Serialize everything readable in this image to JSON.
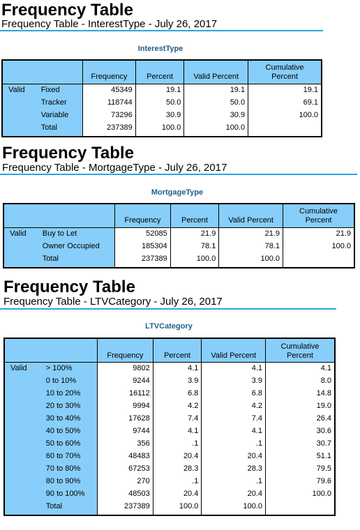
{
  "sections": [
    {
      "heading": "Frequency Table",
      "subtitle": "Frequency Table - InterestType - July 26, 2017",
      "table_title": "InterestType",
      "headers": {
        "frequency": "Frequency",
        "percent": "Percent",
        "valid_percent": "Valid Percent",
        "cumulative_percent": "Cumulative Percent"
      },
      "group_label": "Valid",
      "rows": [
        {
          "label": "Fixed",
          "frequency": "45349",
          "percent": "19.1",
          "valid_percent": "19.1",
          "cumulative_percent": "19.1"
        },
        {
          "label": "Tracker",
          "frequency": "118744",
          "percent": "50.0",
          "valid_percent": "50.0",
          "cumulative_percent": "69.1"
        },
        {
          "label": "Variable",
          "frequency": "73296",
          "percent": "30.9",
          "valid_percent": "30.9",
          "cumulative_percent": "100.0"
        },
        {
          "label": "Total",
          "frequency": "237389",
          "percent": "100.0",
          "valid_percent": "100.0",
          "cumulative_percent": ""
        }
      ]
    },
    {
      "heading": "Frequency Table",
      "subtitle": "Frequency Table - MortgageType - July 26, 2017",
      "table_title": "MortgageType",
      "headers": {
        "frequency": "Frequency",
        "percent": "Percent",
        "valid_percent": "Valid Percent",
        "cumulative_percent": "Cumulative Percent"
      },
      "group_label": "Valid",
      "rows": [
        {
          "label": "Buy to Let",
          "frequency": "52085",
          "percent": "21.9",
          "valid_percent": "21.9",
          "cumulative_percent": "21.9"
        },
        {
          "label": "Owner Occupied",
          "frequency": "185304",
          "percent": "78.1",
          "valid_percent": "78.1",
          "cumulative_percent": "100.0"
        },
        {
          "label": "Total",
          "frequency": "237389",
          "percent": "100.0",
          "valid_percent": "100.0",
          "cumulative_percent": ""
        }
      ]
    },
    {
      "heading": "Frequency Table",
      "subtitle": "Frequency Table - LTVCategory - July 26, 2017",
      "table_title": "LTVCategory",
      "headers": {
        "frequency": "Frequency",
        "percent": "Percent",
        "valid_percent": "Valid Percent",
        "cumulative_percent": "Cumulative Percent"
      },
      "group_label": "Valid",
      "rows": [
        {
          "label": "> 100%",
          "frequency": "9802",
          "percent": "4.1",
          "valid_percent": "4.1",
          "cumulative_percent": "4.1"
        },
        {
          "label": "0 to 10%",
          "frequency": "9244",
          "percent": "3.9",
          "valid_percent": "3.9",
          "cumulative_percent": "8.0"
        },
        {
          "label": "10 to 20%",
          "frequency": "16112",
          "percent": "6.8",
          "valid_percent": "6.8",
          "cumulative_percent": "14.8"
        },
        {
          "label": "20 to 30%",
          "frequency": "9994",
          "percent": "4.2",
          "valid_percent": "4.2",
          "cumulative_percent": "19.0"
        },
        {
          "label": "30 to 40%",
          "frequency": "17628",
          "percent": "7.4",
          "valid_percent": "7.4",
          "cumulative_percent": "26.4"
        },
        {
          "label": "40 to 50%",
          "frequency": "9744",
          "percent": "4.1",
          "valid_percent": "4.1",
          "cumulative_percent": "30.6"
        },
        {
          "label": "50 to 60%",
          "frequency": "356",
          "percent": ".1",
          "valid_percent": ".1",
          "cumulative_percent": "30.7"
        },
        {
          "label": "60 to 70%",
          "frequency": "48483",
          "percent": "20.4",
          "valid_percent": "20.4",
          "cumulative_percent": "51.1"
        },
        {
          "label": "70 to 80%",
          "frequency": "67253",
          "percent": "28.3",
          "valid_percent": "28.3",
          "cumulative_percent": "79.5"
        },
        {
          "label": "80 to 90%",
          "frequency": "270",
          "percent": ".1",
          "valid_percent": ".1",
          "cumulative_percent": "79.6"
        },
        {
          "label": "90 to 100%",
          "frequency": "48503",
          "percent": "20.4",
          "valid_percent": "20.4",
          "cumulative_percent": "100.0"
        },
        {
          "label": "Total",
          "frequency": "237389",
          "percent": "100.0",
          "valid_percent": "100.0",
          "cumulative_percent": ""
        }
      ]
    }
  ]
}
